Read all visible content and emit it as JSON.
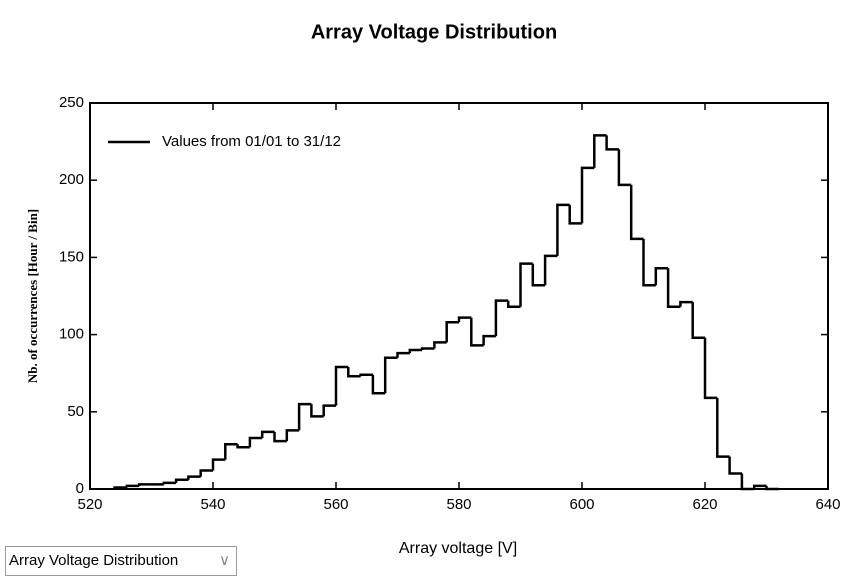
{
  "chart_data": {
    "type": "histogram",
    "title": "Array Voltage Distribution",
    "x_label": "Array voltage [V]",
    "y_label": "Nb. of occurrences [Hour / Bin]",
    "bins": [
      524,
      526,
      528,
      530,
      532,
      534,
      536,
      538,
      540,
      542,
      544,
      546,
      548,
      550,
      552,
      554,
      556,
      558,
      560,
      562,
      564,
      566,
      568,
      570,
      572,
      574,
      576,
      578,
      580,
      582,
      584,
      586,
      588,
      590,
      592,
      594,
      596,
      598,
      600,
      602,
      604,
      606,
      608,
      610,
      612,
      614,
      616,
      618,
      620,
      622,
      624,
      626,
      628,
      630,
      632
    ],
    "series": [
      {
        "name": "Values from 01/01 to 31/12",
        "color": "#000000",
        "values": [
          1,
          2,
          3,
          3,
          4,
          6,
          8,
          12,
          19,
          29,
          27,
          33,
          37,
          31,
          38,
          55,
          47,
          54,
          79,
          73,
          74,
          62,
          85,
          88,
          90,
          91,
          95,
          108,
          111,
          93,
          99,
          122,
          118,
          146,
          132,
          151,
          184,
          172,
          208,
          229,
          220,
          197,
          162,
          132,
          143,
          118,
          121,
          98,
          59,
          21,
          10,
          0,
          2,
          0
        ]
      }
    ],
    "xlim": [
      520,
      640
    ],
    "xticks": [
      520,
      540,
      560,
      580,
      600,
      620,
      640
    ],
    "ylim": [
      0,
      250
    ],
    "yticks": [
      0,
      50,
      100,
      150,
      200,
      250
    ],
    "legend": "upper left"
  },
  "dropdown": {
    "label": "Array Voltage Distribution"
  }
}
